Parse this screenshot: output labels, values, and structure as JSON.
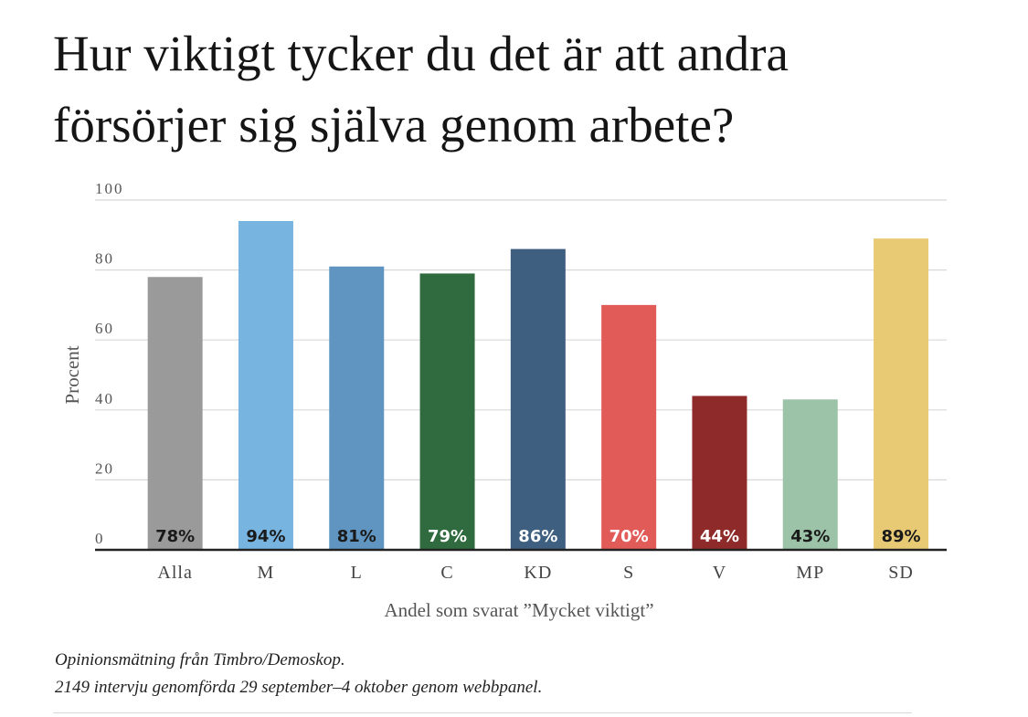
{
  "title_lines": [
    "Hur viktigt tycker du det är att andra",
    "försörjer sig själva genom arbete?"
  ],
  "source_lines": [
    "Opinionsmätning från Timbro/Demoskop.",
    "2149 intervju genomförda 29 september–4 oktober genom webbpanel."
  ],
  "chart_data": {
    "type": "bar",
    "title": "Hur viktigt tycker du det är att andra försörjer sig själva genom arbete?",
    "xlabel": "Andel som svarat ”Mycket viktigt”",
    "ylabel": "Procent",
    "ylim": [
      0,
      100
    ],
    "yticks": [
      0,
      20,
      40,
      60,
      80,
      100
    ],
    "grid": true,
    "categories": [
      "Alla",
      "M",
      "L",
      "C",
      "KD",
      "S",
      "V",
      "MP",
      "SD"
    ],
    "values": [
      78,
      94,
      81,
      79,
      86,
      70,
      44,
      43,
      89
    ],
    "value_labels": [
      "78%",
      "94%",
      "81%",
      "79%",
      "86%",
      "70%",
      "44%",
      "43%",
      "89%"
    ],
    "colors": [
      "#9a9a9a",
      "#78b4e0",
      "#5f95c0",
      "#2f6b3e",
      "#3e5f80",
      "#e15b58",
      "#8e2a2a",
      "#9cc2a8",
      "#e8ca75"
    ],
    "label_colors": [
      "#1a1a1a",
      "#1a1a1a",
      "#1a1a1a",
      "#ffffff",
      "#ffffff",
      "#ffffff",
      "#ffffff",
      "#1a1a1a",
      "#1a1a1a"
    ]
  }
}
